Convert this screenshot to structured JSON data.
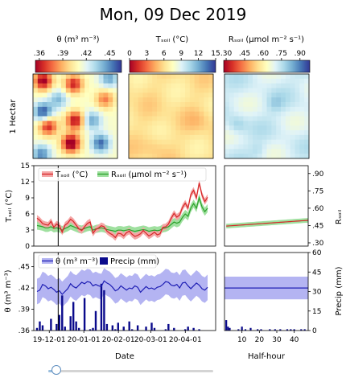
{
  "title": "Mon, 09 Dec 2019",
  "colorbars": [
    {
      "label": "θ (m³ m⁻³)",
      "ticks": [
        ".36",
        ".39",
        ".42",
        ".45"
      ],
      "tickvals": [
        0.36,
        0.39,
        0.42,
        0.45
      ],
      "range": [
        0.355,
        0.465
      ],
      "cmap": "RdYlBu"
    },
    {
      "label": "Tₛₒᵢₗ (°C)",
      "ticks": [
        "0",
        "3",
        "6",
        "9",
        "12",
        "15"
      ],
      "tickvals": [
        0,
        3,
        6,
        9,
        12,
        15
      ],
      "range": [
        0,
        15
      ],
      "cmap": "RdYlBu"
    },
    {
      "label": "Rₛₒᵢₗ (μmol m⁻² s⁻¹)",
      "ticks": [
        ".30",
        ".45",
        ".60",
        ".75",
        ".90"
      ],
      "tickvals": [
        0.3,
        0.45,
        0.6,
        0.75,
        0.9
      ],
      "range": [
        0.28,
        0.98
      ],
      "cmap": "RdYlBu"
    }
  ],
  "row_label": "1 Hectar",
  "middle": {
    "ylabel": "Tₛₒᵢₗ (°C)",
    "yticks": [
      "0",
      "3",
      "6",
      "9",
      "12",
      "15"
    ],
    "ytickvals": [
      0,
      3,
      6,
      9,
      12,
      15
    ],
    "ylim": [
      0,
      15
    ],
    "right_ylabel": "Rₛₒᵢₗ",
    "right_yticks": [
      ".30",
      ".45",
      ".60",
      ".75",
      ".90"
    ],
    "right_ytickvals": [
      0.3,
      0.45,
      0.6,
      0.75,
      0.9
    ],
    "legend": [
      "Tₛₒᵢₗ (°C)",
      "Rₛₒᵢₗ (μmol m⁻² s⁻¹)"
    ]
  },
  "bottom": {
    "ylabel": "θ (m³ m⁻³)",
    "yticks": [
      ".36",
      ".39",
      ".42",
      ".45"
    ],
    "ytickvals": [
      0.36,
      0.39,
      0.42,
      0.45
    ],
    "ylim": [
      0.36,
      0.47
    ],
    "right_ylabel": "Precip (mm)",
    "right_yticks": [
      "0",
      "15",
      "30",
      "45",
      "60"
    ],
    "right_ytickvals": [
      0,
      15,
      30,
      45,
      60
    ],
    "right_ylim": [
      0,
      60
    ],
    "legend": [
      "θ (m³ m⁻³)",
      "Precip (mm)"
    ],
    "xlabel": "Date",
    "xticks": [
      "19-12-01",
      "20-01-01",
      "20-02-01",
      "20-03-01",
      "20-04-01"
    ],
    "halfhour_xlabel": "Half-hour",
    "halfhour_xticks": [
      "10",
      "20",
      "30",
      "40"
    ],
    "halfhour_xtickvals": [
      10,
      20,
      30,
      40
    ]
  },
  "colors": {
    "tsoil": "#d62728",
    "tsoil_band": "#f4a6a6",
    "rsoil": "#2ca02c",
    "rsoil_band": "#9fe09f",
    "theta": "#1f1fb4",
    "theta_band": "#b4b4f2",
    "precip": "#0a0a8c"
  },
  "chart_data": [
    {
      "type": "line",
      "xaxis": "date",
      "x_start": "2019-11-20",
      "x_end": "2020-04-21",
      "current_date": "2019-12-09",
      "series": [
        {
          "name": "Tₛₒᵢₗ (°C)",
          "values": [
            5.2,
            4.8,
            4.2,
            4.0,
            3.9,
            4.6,
            3.5,
            4.1,
            3.8,
            2.6,
            3.9,
            4.3,
            5.0,
            4.6,
            3.9,
            3.2,
            2.9,
            3.6,
            4.2,
            4.5,
            2.4,
            3.1,
            3.4,
            3.8,
            3.6,
            2.8,
            2.4,
            2.1,
            1.6,
            2.4,
            2.3,
            1.9,
            2.5,
            2.8,
            2.2,
            1.8,
            2.0,
            2.3,
            2.9,
            2.4,
            1.9,
            2.2,
            2.6,
            2.1,
            2.3,
            3.5,
            3.6,
            4.1,
            5.2,
            6.1,
            5.4,
            5.8,
            7.2,
            8.0,
            7.1,
            9.6,
            10.4,
            9.0,
            11.8,
            9.5,
            8.3,
            9.1
          ]
        },
        {
          "name": "Rₛₒᵢₗ (μmol m⁻² s⁻¹)",
          "values": [
            0.45,
            0.445,
            0.44,
            0.43,
            0.43,
            0.44,
            0.425,
            0.43,
            0.425,
            0.41,
            0.425,
            0.435,
            0.45,
            0.44,
            0.43,
            0.42,
            0.415,
            0.425,
            0.435,
            0.44,
            0.41,
            0.42,
            0.425,
            0.43,
            0.425,
            0.415,
            0.41,
            0.405,
            0.4,
            0.41,
            0.41,
            0.405,
            0.41,
            0.415,
            0.405,
            0.4,
            0.405,
            0.41,
            0.415,
            0.41,
            0.4,
            0.405,
            0.41,
            0.405,
            0.41,
            0.425,
            0.43,
            0.44,
            0.46,
            0.48,
            0.47,
            0.48,
            0.52,
            0.55,
            0.53,
            0.6,
            0.64,
            0.6,
            0.69,
            0.61,
            0.57,
            0.6
          ]
        }
      ]
    },
    {
      "type": "line",
      "x": [
        1,
        48
      ],
      "xlim": [
        0,
        48
      ],
      "series": [
        {
          "name": "Rₛₒᵢₗ (μmol m⁻² s⁻¹)",
          "values": [
            0.445,
            0.495
          ]
        }
      ]
    },
    {
      "type": "line",
      "xaxis": "date",
      "series": [
        {
          "name": "θ (m³ m⁻³)",
          "values": [
            0.415,
            0.417,
            0.425,
            0.423,
            0.419,
            0.421,
            0.418,
            0.414,
            0.416,
            0.411,
            0.415,
            0.419,
            0.426,
            0.422,
            0.42,
            0.424,
            0.428,
            0.426,
            0.429,
            0.428,
            0.423,
            0.425,
            0.423,
            0.422,
            0.43,
            0.427,
            0.425,
            0.421,
            0.416,
            0.418,
            0.423,
            0.42,
            0.417,
            0.42,
            0.419,
            0.423,
            0.421,
            0.414,
            0.418,
            0.422,
            0.419,
            0.42,
            0.418,
            0.421,
            0.422,
            0.425,
            0.429,
            0.428,
            0.424,
            0.423,
            0.425,
            0.42,
            0.427,
            0.428,
            0.423,
            0.419,
            0.423,
            0.427,
            0.424,
            0.419,
            0.417,
            0.421
          ]
        }
      ]
    },
    {
      "type": "bar",
      "name": "Precip (mm)",
      "values": [
        2,
        7,
        4,
        0,
        0,
        9,
        0,
        5,
        12,
        27,
        3,
        0,
        11,
        22,
        7,
        2,
        0,
        25,
        0,
        1,
        2,
        15,
        0,
        36,
        31,
        5,
        0,
        4,
        1,
        6,
        0,
        3,
        0,
        7,
        1,
        0,
        4,
        0,
        0,
        3,
        0,
        6,
        2,
        0,
        0,
        0,
        1,
        5,
        0,
        2,
        0,
        0,
        0,
        1,
        3,
        0,
        2,
        0,
        1,
        0,
        0,
        0
      ]
    },
    {
      "type": "line",
      "xlim": [
        0,
        48
      ],
      "series": [
        {
          "name": "θ (m³ m⁻³)",
          "values": [
            0.42,
            0.42
          ]
        }
      ]
    },
    {
      "type": "bar",
      "name": "Precip (mm)",
      "x": [
        1,
        2,
        3,
        8,
        10,
        12,
        15,
        19,
        21,
        26,
        29,
        32,
        36,
        38,
        40,
        44,
        46
      ],
      "values": [
        8,
        3,
        2,
        1,
        3,
        1,
        2,
        1,
        1,
        1,
        1,
        1,
        1,
        1,
        1,
        1,
        1
      ]
    }
  ]
}
